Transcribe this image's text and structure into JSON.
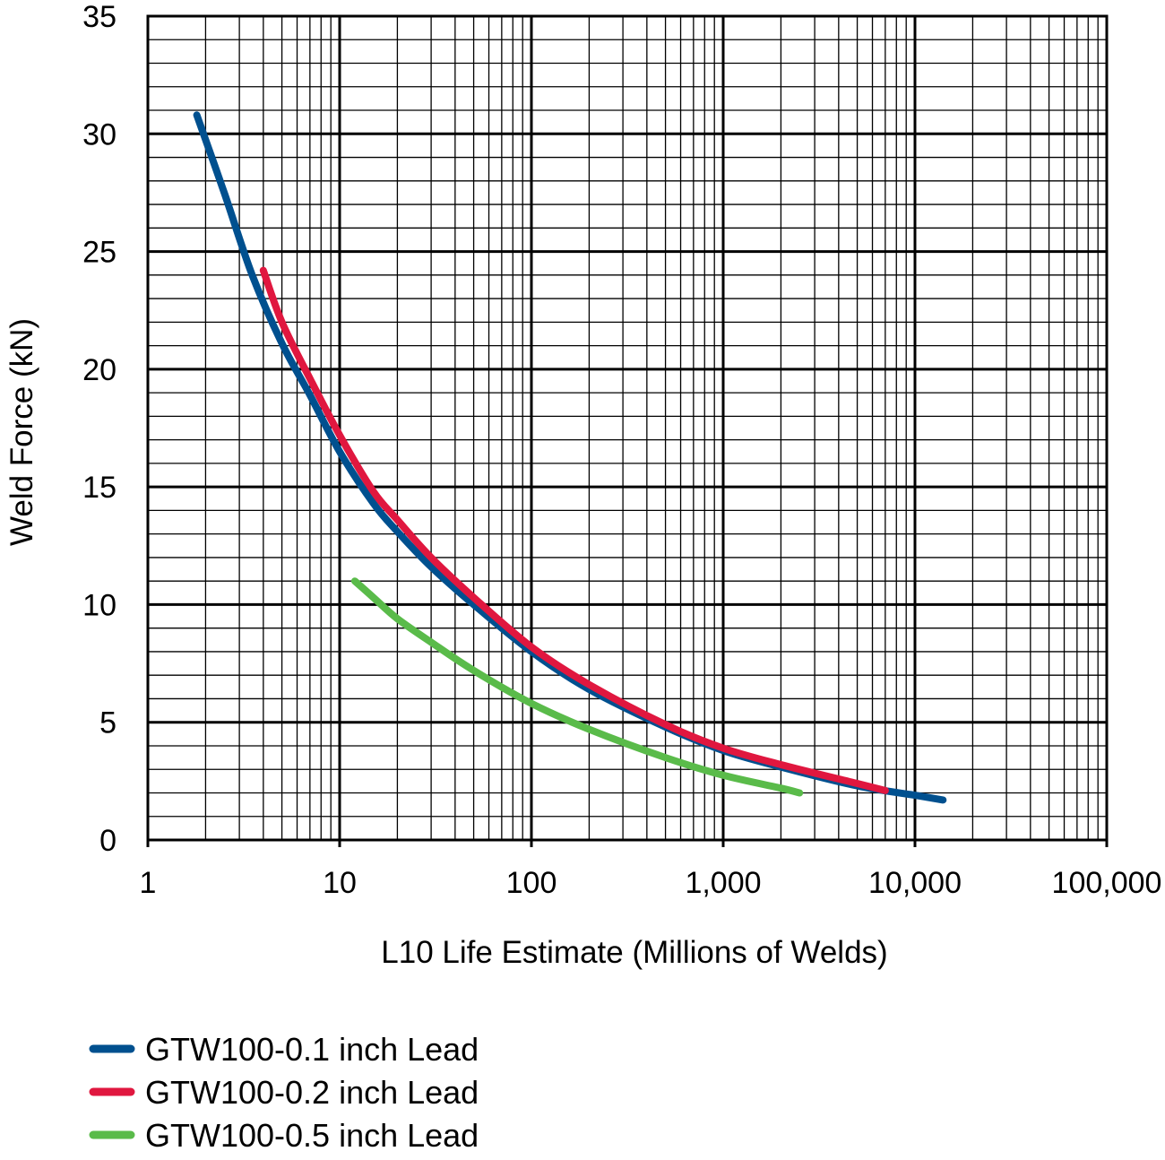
{
  "chart_data": {
    "type": "line",
    "x_scale": "log",
    "xlabel": "L10 Life Estimate (Millions of Welds)",
    "ylabel": "Weld Force (kN)",
    "xlim": [
      1,
      100000
    ],
    "ylim": [
      0,
      35
    ],
    "x_ticks": [
      {
        "value": 1,
        "label": "1"
      },
      {
        "value": 10,
        "label": "10"
      },
      {
        "value": 100,
        "label": "100"
      },
      {
        "value": 1000,
        "label": "1,000"
      },
      {
        "value": 10000,
        "label": "10,000"
      },
      {
        "value": 100000,
        "label": "100,000"
      }
    ],
    "y_ticks": [
      {
        "value": 0,
        "label": "0"
      },
      {
        "value": 5,
        "label": "5"
      },
      {
        "value": 10,
        "label": "10"
      },
      {
        "value": 15,
        "label": "15"
      },
      {
        "value": 20,
        "label": "20"
      },
      {
        "value": 25,
        "label": "25"
      },
      {
        "value": 30,
        "label": "30"
      },
      {
        "value": 35,
        "label": "35"
      }
    ],
    "grid": true,
    "minor_grid": true,
    "legend_position": "bottom-left",
    "series": [
      {
        "name": "GTW100-0.1 inch Lead",
        "color": "#00508f",
        "x": [
          1.8,
          2.5,
          3.5,
          5,
          7,
          10,
          15,
          20,
          30,
          50,
          100,
          200,
          500,
          1000,
          2000,
          5000,
          10000,
          14000
        ],
        "y": [
          30.8,
          27.5,
          24.0,
          21.1,
          18.9,
          16.5,
          14.3,
          13.1,
          11.6,
          10.0,
          8.0,
          6.4,
          4.8,
          3.8,
          3.1,
          2.3,
          1.9,
          1.7
        ]
      },
      {
        "name": "GTW100-0.2 inch Lead",
        "color": "#e0173f",
        "x": [
          4,
          5,
          7,
          10,
          15,
          20,
          30,
          50,
          100,
          200,
          500,
          1000,
          2000,
          5000,
          7000
        ],
        "y": [
          24.2,
          22.0,
          19.6,
          17.2,
          14.8,
          13.6,
          12.0,
          10.3,
          8.2,
          6.6,
          4.9,
          3.9,
          3.2,
          2.4,
          2.1
        ]
      },
      {
        "name": "GTW100-0.5 inch Lead",
        "color": "#5abb4a",
        "x": [
          12,
          15,
          20,
          30,
          50,
          100,
          200,
          500,
          1000,
          2000,
          2500
        ],
        "y": [
          11.0,
          10.3,
          9.4,
          8.4,
          7.2,
          5.8,
          4.7,
          3.5,
          2.75,
          2.2,
          2.0
        ]
      }
    ]
  }
}
